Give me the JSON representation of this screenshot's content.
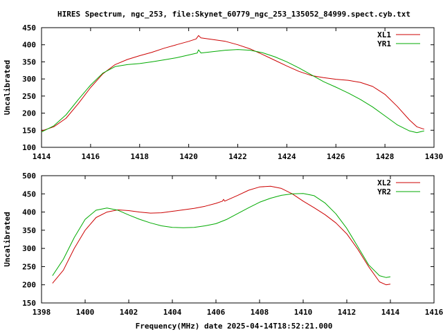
{
  "chart_data": [
    {
      "type": "line",
      "title": "HIRES Spectrum, ngc_253, file:Skynet_60779_ngc_253_135052_84999.spect.cyb.txt",
      "xlabel": "",
      "ylabel": "Uncalibrated",
      "xlim": [
        1414,
        1430
      ],
      "ylim": [
        100,
        450
      ],
      "xticks": [
        1414,
        1416,
        1418,
        1420,
        1422,
        1424,
        1426,
        1428,
        1430
      ],
      "yticks": [
        100,
        150,
        200,
        250,
        300,
        350,
        400,
        450
      ],
      "legend": "top-right",
      "series": [
        {
          "name": "XL1",
          "color": "#cc0000",
          "points": [
            [
              1414.0,
              148
            ],
            [
              1414.5,
              160
            ],
            [
              1415.0,
              185
            ],
            [
              1415.5,
              228
            ],
            [
              1416.0,
              275
            ],
            [
              1416.5,
              315
            ],
            [
              1417.0,
              342
            ],
            [
              1417.5,
              357
            ],
            [
              1418.0,
              368
            ],
            [
              1418.5,
              378
            ],
            [
              1419.0,
              390
            ],
            [
              1419.5,
              400
            ],
            [
              1420.0,
              410
            ],
            [
              1420.3,
              417
            ],
            [
              1420.4,
              427
            ],
            [
              1420.5,
              420
            ],
            [
              1421.0,
              415
            ],
            [
              1421.5,
              410
            ],
            [
              1422.0,
              400
            ],
            [
              1422.5,
              388
            ],
            [
              1423.0,
              372
            ],
            [
              1423.5,
              355
            ],
            [
              1424.0,
              338
            ],
            [
              1424.5,
              322
            ],
            [
              1425.0,
              310
            ],
            [
              1425.5,
              304
            ],
            [
              1426.0,
              299
            ],
            [
              1426.5,
              296
            ],
            [
              1427.0,
              290
            ],
            [
              1427.5,
              278
            ],
            [
              1428.0,
              255
            ],
            [
              1428.5,
              220
            ],
            [
              1429.0,
              180
            ],
            [
              1429.3,
              160
            ],
            [
              1429.6,
              153
            ]
          ]
        },
        {
          "name": "YR1",
          "color": "#00aa00",
          "points": [
            [
              1414.0,
              145
            ],
            [
              1414.5,
              163
            ],
            [
              1415.0,
              195
            ],
            [
              1415.5,
              240
            ],
            [
              1416.0,
              282
            ],
            [
              1416.5,
              317
            ],
            [
              1417.0,
              336
            ],
            [
              1417.5,
              342
            ],
            [
              1418.0,
              345
            ],
            [
              1418.5,
              350
            ],
            [
              1419.0,
              356
            ],
            [
              1419.5,
              362
            ],
            [
              1420.0,
              370
            ],
            [
              1420.35,
              376
            ],
            [
              1420.4,
              385
            ],
            [
              1420.5,
              376
            ],
            [
              1421.0,
              380
            ],
            [
              1421.5,
              384
            ],
            [
              1422.0,
              386
            ],
            [
              1422.5,
              384
            ],
            [
              1423.0,
              377
            ],
            [
              1423.5,
              365
            ],
            [
              1424.0,
              350
            ],
            [
              1424.5,
              332
            ],
            [
              1425.0,
              312
            ],
            [
              1425.5,
              292
            ],
            [
              1426.0,
              276
            ],
            [
              1426.5,
              259
            ],
            [
              1427.0,
              240
            ],
            [
              1427.5,
              218
            ],
            [
              1428.0,
              192
            ],
            [
              1428.5,
              166
            ],
            [
              1429.0,
              148
            ],
            [
              1429.3,
              143
            ],
            [
              1429.6,
              148
            ]
          ]
        }
      ]
    },
    {
      "type": "line",
      "title": "",
      "xlabel": "Frequency(MHz) date 2025-04-14T18:52:21.000",
      "ylabel": "Uncalibrated",
      "xlim": [
        1398,
        1416
      ],
      "ylim": [
        150,
        500
      ],
      "xticks": [
        1398,
        1400,
        1402,
        1404,
        1406,
        1408,
        1410,
        1412,
        1414,
        1416
      ],
      "yticks": [
        150,
        200,
        250,
        300,
        350,
        400,
        450,
        500
      ],
      "legend": "top-right",
      "series": [
        {
          "name": "XL2",
          "color": "#cc0000",
          "points": [
            [
              1398.5,
              204
            ],
            [
              1399.0,
              240
            ],
            [
              1399.5,
              300
            ],
            [
              1400.0,
              350
            ],
            [
              1400.5,
              385
            ],
            [
              1401.0,
              400
            ],
            [
              1401.5,
              406
            ],
            [
              1402.0,
              404
            ],
            [
              1402.5,
              400
            ],
            [
              1403.0,
              397
            ],
            [
              1403.5,
              398
            ],
            [
              1404.0,
              402
            ],
            [
              1404.5,
              406
            ],
            [
              1405.0,
              410
            ],
            [
              1405.5,
              416
            ],
            [
              1406.0,
              424
            ],
            [
              1406.3,
              430
            ],
            [
              1406.35,
              435
            ],
            [
              1406.4,
              430
            ],
            [
              1407.0,
              446
            ],
            [
              1407.5,
              460
            ],
            [
              1408.0,
              469
            ],
            [
              1408.5,
              471
            ],
            [
              1409.0,
              465
            ],
            [
              1409.5,
              450
            ],
            [
              1410.0,
              430
            ],
            [
              1410.5,
              412
            ],
            [
              1411.0,
              393
            ],
            [
              1411.5,
              370
            ],
            [
              1412.0,
              340
            ],
            [
              1412.5,
              298
            ],
            [
              1413.0,
              250
            ],
            [
              1413.5,
              208
            ],
            [
              1413.8,
              200
            ],
            [
              1414.0,
              202
            ]
          ]
        },
        {
          "name": "YR2",
          "color": "#00aa00",
          "points": [
            [
              1398.5,
              225
            ],
            [
              1399.0,
              270
            ],
            [
              1399.5,
              330
            ],
            [
              1400.0,
              380
            ],
            [
              1400.5,
              405
            ],
            [
              1401.0,
              411
            ],
            [
              1401.5,
              405
            ],
            [
              1402.0,
              392
            ],
            [
              1402.5,
              380
            ],
            [
              1403.0,
              370
            ],
            [
              1403.5,
              362
            ],
            [
              1404.0,
              358
            ],
            [
              1404.5,
              357
            ],
            [
              1405.0,
              358
            ],
            [
              1405.5,
              362
            ],
            [
              1406.0,
              368
            ],
            [
              1406.5,
              380
            ],
            [
              1407.0,
              396
            ],
            [
              1407.5,
              412
            ],
            [
              1408.0,
              427
            ],
            [
              1408.5,
              438
            ],
            [
              1409.0,
              446
            ],
            [
              1409.5,
              450
            ],
            [
              1410.0,
              451
            ],
            [
              1410.5,
              445
            ],
            [
              1411.0,
              425
            ],
            [
              1411.5,
              395
            ],
            [
              1412.0,
              355
            ],
            [
              1412.5,
              305
            ],
            [
              1413.0,
              255
            ],
            [
              1413.5,
              225
            ],
            [
              1413.8,
              220
            ],
            [
              1414.0,
              222
            ]
          ]
        }
      ]
    }
  ]
}
